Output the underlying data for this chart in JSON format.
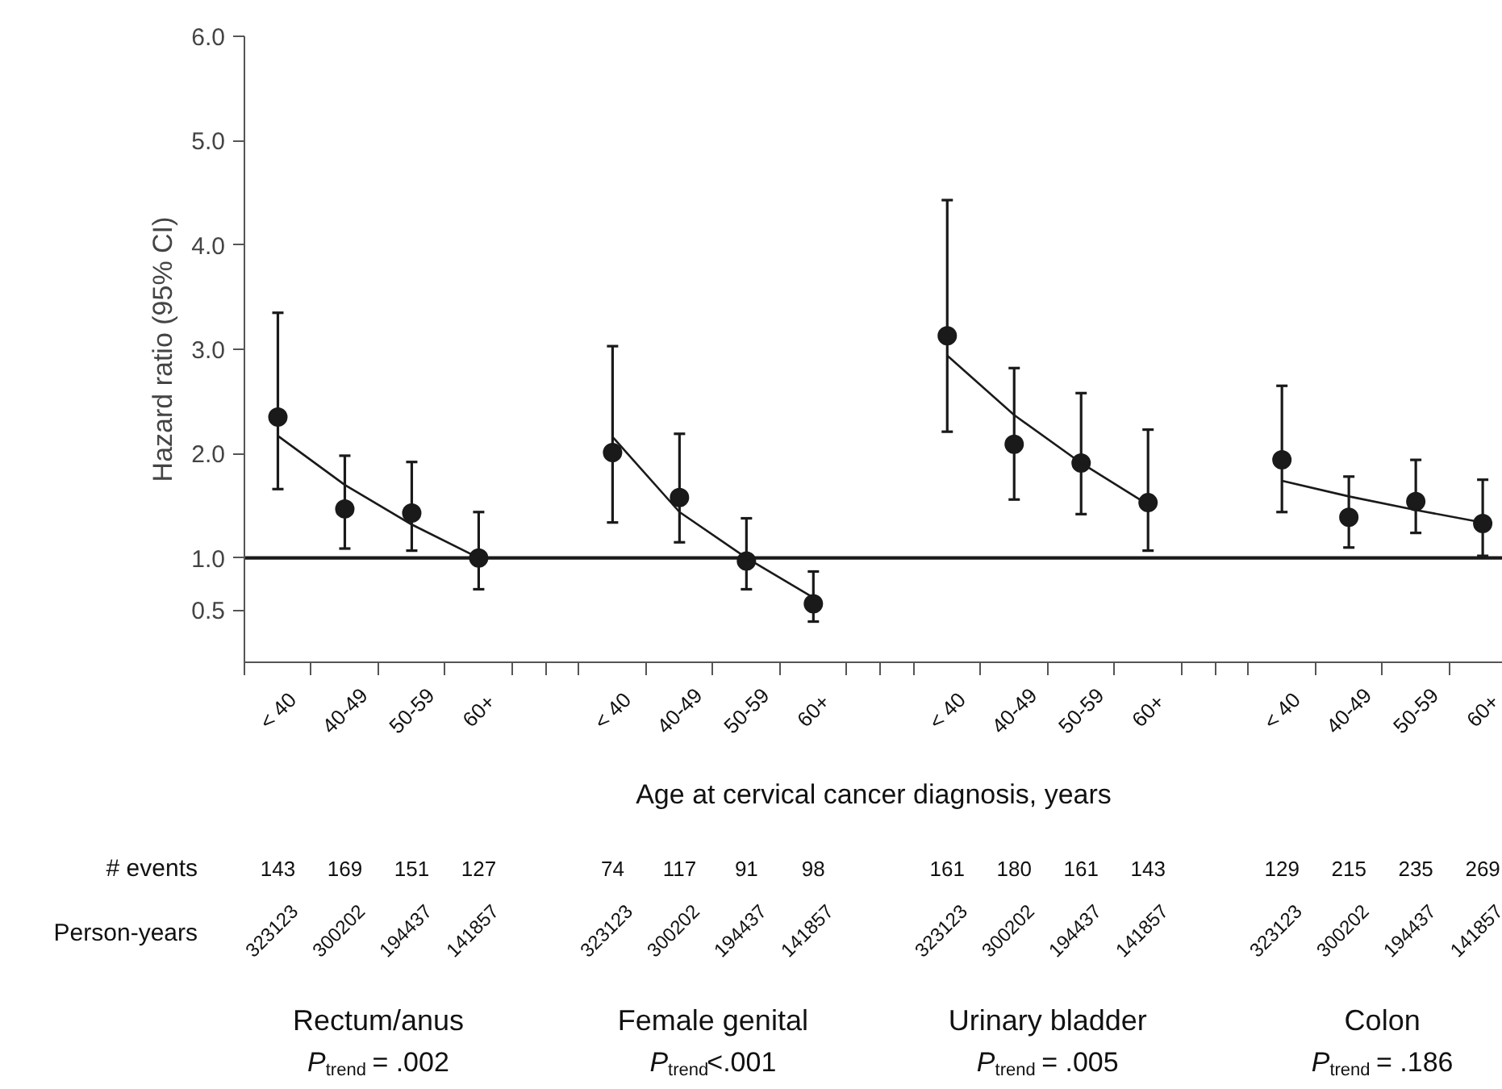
{
  "chart_data": {
    "type": "scatter",
    "xlabel": "Age at cervical cancer diagnosis, years",
    "ylabel": "Hazard ratio (95% CI)",
    "categories": [
      "< 40",
      "40-49",
      "50-59",
      "60+",
      "< 40",
      "40-49",
      "50-59",
      "60+",
      "< 40",
      "40-49",
      "50-59",
      "60+",
      "< 40",
      "40-49",
      "50-59",
      "60+"
    ],
    "ylim": [
      0,
      6
    ],
    "yticks": [
      0.5,
      {
        "value": 1,
        "label": "1.0"
      },
      {
        "value": 2,
        "label": "2.0"
      },
      {
        "value": 3,
        "label": "3.0"
      },
      {
        "value": 4,
        "label": "4.0"
      },
      {
        "value": 5,
        "label": "5.0"
      },
      {
        "value": 6,
        "label": "6.0"
      }
    ],
    "marker": "circle",
    "ref_lines": [
      {
        "axis": "y",
        "value": 1,
        "color": "#1a1a1a"
      }
    ],
    "series": [
      {
        "color": "#1a1a1a",
        "values": [
          2.35,
          1.47,
          1.43,
          1.0,
          null,
          null,
          null,
          null,
          null,
          null,
          null,
          null,
          null,
          null,
          null,
          null
        ],
        "errors": [
          [
            1.66,
            3.35
          ],
          [
            1.09,
            1.98
          ],
          [
            1.07,
            1.92
          ],
          [
            0.7,
            1.44
          ],
          null,
          null,
          null,
          null,
          null,
          null,
          null,
          null,
          null,
          null,
          null,
          null
        ]
      },
      {
        "color": "#1a1a1a",
        "values": [
          null,
          null,
          null,
          null,
          2.01,
          1.58,
          0.97,
          0.56,
          null,
          null,
          null,
          null,
          null,
          null,
          null,
          null
        ],
        "errors": [
          null,
          null,
          null,
          null,
          [
            1.34,
            3.03
          ],
          [
            1.15,
            2.19
          ],
          [
            0.7,
            1.38
          ],
          [
            0.39,
            0.87
          ],
          null,
          null,
          null,
          null,
          null,
          null,
          null,
          null
        ]
      },
      {
        "color": "#1a1a1a",
        "values": [
          null,
          null,
          null,
          null,
          null,
          null,
          null,
          null,
          3.13,
          2.09,
          1.91,
          1.53,
          null,
          null,
          null,
          null
        ],
        "errors": [
          null,
          null,
          null,
          null,
          null,
          null,
          null,
          null,
          [
            2.21,
            4.43
          ],
          [
            1.56,
            2.82
          ],
          [
            1.42,
            2.58
          ],
          [
            1.07,
            2.23
          ],
          null,
          null,
          null,
          null
        ]
      },
      {
        "color": "#1a1a1a",
        "values": [
          null,
          null,
          null,
          null,
          null,
          null,
          null,
          null,
          null,
          null,
          null,
          null,
          1.94,
          1.39,
          1.54,
          1.33
        ],
        "errors": [
          null,
          null,
          null,
          null,
          null,
          null,
          null,
          null,
          null,
          null,
          null,
          null,
          [
            1.44,
            2.65
          ],
          [
            1.1,
            1.78
          ],
          [
            1.24,
            1.94
          ],
          [
            1.02,
            1.75
          ]
        ]
      },
      {
        "type": "line",
        "marker": "none",
        "color": "#1a1a1a",
        "values": [
          2.17,
          1.7,
          1.32,
          1.0,
          null,
          null,
          null,
          null,
          null,
          null,
          null,
          null,
          null,
          null,
          null,
          null
        ]
      },
      {
        "type": "line",
        "marker": "none",
        "color": "#1a1a1a",
        "values": [
          null,
          null,
          null,
          null,
          2.16,
          1.44,
          1.0,
          0.62,
          null,
          null,
          null,
          null,
          null,
          null,
          null,
          null
        ]
      },
      {
        "type": "line",
        "marker": "none",
        "color": "#1a1a1a",
        "values": [
          null,
          null,
          null,
          null,
          null,
          null,
          null,
          null,
          2.94,
          2.37,
          1.91,
          1.51,
          null,
          null,
          null,
          null
        ]
      },
      {
        "type": "line",
        "marker": "none",
        "color": "#1a1a1a",
        "values": [
          null,
          null,
          null,
          null,
          null,
          null,
          null,
          null,
          null,
          null,
          null,
          null,
          1.74,
          1.59,
          1.46,
          1.34
        ]
      }
    ],
    "annotations": [
      "# events",
      "143",
      "169",
      "151",
      "127",
      "74",
      "117",
      "91",
      "98",
      "161",
      "180",
      "161",
      "143",
      "129",
      "215",
      "235",
      "269",
      "Person-years",
      "323123",
      "300202",
      "194437",
      "141857",
      "323123",
      "300202",
      "194437",
      "141857",
      "323123",
      "300202",
      "194437",
      "141857",
      "323123",
      "300202",
      "194437",
      "141857",
      "Rectum/anus",
      "P$_{trend}$ = .002",
      "Female genital",
      "P$_{trend}$<.001",
      "Urinary bladder",
      "P$_{trend}$ = .005",
      "Colon",
      "P$_{trend}$ = .186"
    ]
  }
}
